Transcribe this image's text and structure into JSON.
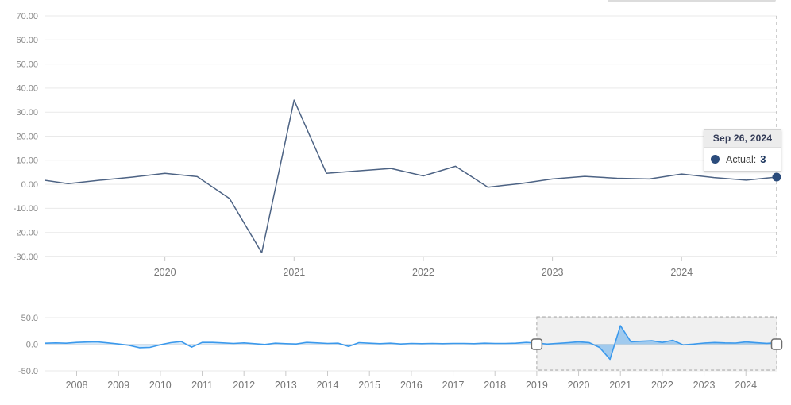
{
  "tooltip": {
    "date": "Sep 26, 2024",
    "series_label": "Actual:",
    "value": "3"
  },
  "colors": {
    "main_line": "#4d6384",
    "marker": "#2b4c7c",
    "nav_line": "#3b99ec",
    "nav_fill": "#3b99ec",
    "grid": "#e9e9e9",
    "axis_line": "#d9d9d9",
    "tick_line": "#c9c9c9",
    "y_label": "#8a8a8a",
    "x_label": "#757575",
    "crosshair": "#9e9e9e",
    "selection_fill": "rgba(128,128,128,0.12)",
    "selection_border": "#a8a8a8",
    "handle_fill": "#ffffff",
    "handle_border": "#6e6e6e",
    "tooltip_header_bg": "#ececec",
    "tooltip_header_text": "#343c58",
    "tooltip_value_text": "#1d365e"
  },
  "chart_data": [
    {
      "id": "main",
      "type": "line",
      "title": "",
      "xlabel": "",
      "ylabel": "",
      "grid": "horizontal",
      "legend": "none",
      "ylim": [
        -30,
        70
      ],
      "x_domain": [
        "2019-01-01",
        "2024-09-26"
      ],
      "y_ticks": [
        "70.00",
        "60.00",
        "50.00",
        "40.00",
        "30.00",
        "20.00",
        "10.00",
        "0.00",
        "-10.00",
        "-20.00",
        "-30.00"
      ],
      "x_ticks": [
        "2020",
        "2021",
        "2022",
        "2023",
        "2024"
      ],
      "series": [
        {
          "name": "Actual",
          "point_format": [
            "date",
            "value"
          ],
          "points": [
            [
              "2018-12",
              2.2
            ],
            [
              "2019-03",
              0.3
            ],
            [
              "2019-06",
              1.7
            ],
            [
              "2019-09",
              3.0
            ],
            [
              "2019-12",
              4.6
            ],
            [
              "2020-03",
              3.2
            ],
            [
              "2020-06",
              -5.9
            ],
            [
              "2020-09",
              -28.4
            ],
            [
              "2020-12",
              35.0
            ],
            [
              "2021-03",
              4.6
            ],
            [
              "2021-06",
              5.6
            ],
            [
              "2021-09",
              6.6
            ],
            [
              "2021-12",
              3.5
            ],
            [
              "2022-03",
              7.5
            ],
            [
              "2022-06",
              -1.2
            ],
            [
              "2022-09",
              0.3
            ],
            [
              "2022-12",
              2.2
            ],
            [
              "2023-03",
              3.3
            ],
            [
              "2023-06",
              2.5
            ],
            [
              "2023-09",
              2.2
            ],
            [
              "2023-12",
              4.3
            ],
            [
              "2024-03",
              2.8
            ],
            [
              "2024-06",
              1.7
            ],
            [
              "2024-09-26",
              3.0
            ]
          ]
        }
      ],
      "last_point": {
        "date": "2024-09-26",
        "value": 3
      }
    },
    {
      "id": "navigator",
      "type": "area",
      "title": "",
      "grid": "horizontal",
      "ylim": [
        -50,
        50
      ],
      "x_domain": [
        "2007-03",
        "2024-09-26"
      ],
      "y_ticks": [
        "50.0",
        "0.0",
        "-50.0"
      ],
      "x_ticks": [
        "2008",
        "2009",
        "2010",
        "2011",
        "2012",
        "2013",
        "2014",
        "2015",
        "2016",
        "2017",
        "2018",
        "2019",
        "2020",
        "2021",
        "2022",
        "2023",
        "2024"
      ],
      "selection": {
        "from": "2019-01-01",
        "to": "2024-09-26"
      },
      "series": [
        {
          "name": "Actual",
          "point_format": [
            "date",
            "value"
          ],
          "points": [
            [
              "2007-03",
              2.0
            ],
            [
              "2007-06",
              2.5
            ],
            [
              "2007-09",
              2.0
            ],
            [
              "2007-12",
              3.5
            ],
            [
              "2008-03",
              4.2
            ],
            [
              "2008-06",
              4.5
            ],
            [
              "2008-09",
              2.5
            ],
            [
              "2008-12",
              0.5
            ],
            [
              "2009-03",
              -2.0
            ],
            [
              "2009-06",
              -6.5
            ],
            [
              "2009-09",
              -6.0
            ],
            [
              "2009-12",
              -1.0
            ],
            [
              "2010-03",
              3.0
            ],
            [
              "2010-06",
              5.0
            ],
            [
              "2010-09",
              -5.5
            ],
            [
              "2010-12",
              3.5
            ],
            [
              "2011-03",
              3.5
            ],
            [
              "2011-06",
              2.5
            ],
            [
              "2011-09",
              1.5
            ],
            [
              "2011-12",
              2.5
            ],
            [
              "2012-03",
              1.0
            ],
            [
              "2012-06",
              -0.5
            ],
            [
              "2012-09",
              2.0
            ],
            [
              "2012-12",
              1.0
            ],
            [
              "2013-03",
              0.5
            ],
            [
              "2013-06",
              3.5
            ],
            [
              "2013-09",
              2.5
            ],
            [
              "2013-12",
              1.5
            ],
            [
              "2014-03",
              2.0
            ],
            [
              "2014-06",
              -4.0
            ],
            [
              "2014-09",
              3.0
            ],
            [
              "2014-12",
              2.0
            ],
            [
              "2015-03",
              1.0
            ],
            [
              "2015-06",
              2.0
            ],
            [
              "2015-09",
              0.5
            ],
            [
              "2015-12",
              1.5
            ],
            [
              "2016-03",
              1.0
            ],
            [
              "2016-06",
              1.5
            ],
            [
              "2016-09",
              1.0
            ],
            [
              "2016-12",
              1.5
            ],
            [
              "2017-03",
              1.5
            ],
            [
              "2017-06",
              1.0
            ],
            [
              "2017-09",
              2.0
            ],
            [
              "2017-12",
              1.5
            ],
            [
              "2018-03",
              1.5
            ],
            [
              "2018-06",
              2.0
            ],
            [
              "2018-09",
              3.5
            ],
            [
              "2018-12",
              2.2
            ],
            [
              "2019-03",
              0.3
            ],
            [
              "2019-06",
              1.7
            ],
            [
              "2019-09",
              3.0
            ],
            [
              "2019-12",
              4.6
            ],
            [
              "2020-03",
              3.2
            ],
            [
              "2020-06",
              -5.9
            ],
            [
              "2020-09",
              -28.4
            ],
            [
              "2020-12",
              35.0
            ],
            [
              "2021-03",
              4.6
            ],
            [
              "2021-06",
              5.6
            ],
            [
              "2021-09",
              6.6
            ],
            [
              "2021-12",
              3.5
            ],
            [
              "2022-03",
              7.5
            ],
            [
              "2022-06",
              -1.2
            ],
            [
              "2022-09",
              0.3
            ],
            [
              "2022-12",
              2.2
            ],
            [
              "2023-03",
              3.3
            ],
            [
              "2023-06",
              2.5
            ],
            [
              "2023-09",
              2.2
            ],
            [
              "2023-12",
              4.3
            ],
            [
              "2024-03",
              2.8
            ],
            [
              "2024-06",
              1.7
            ],
            [
              "2024-09-26",
              3.0
            ]
          ]
        }
      ]
    }
  ]
}
